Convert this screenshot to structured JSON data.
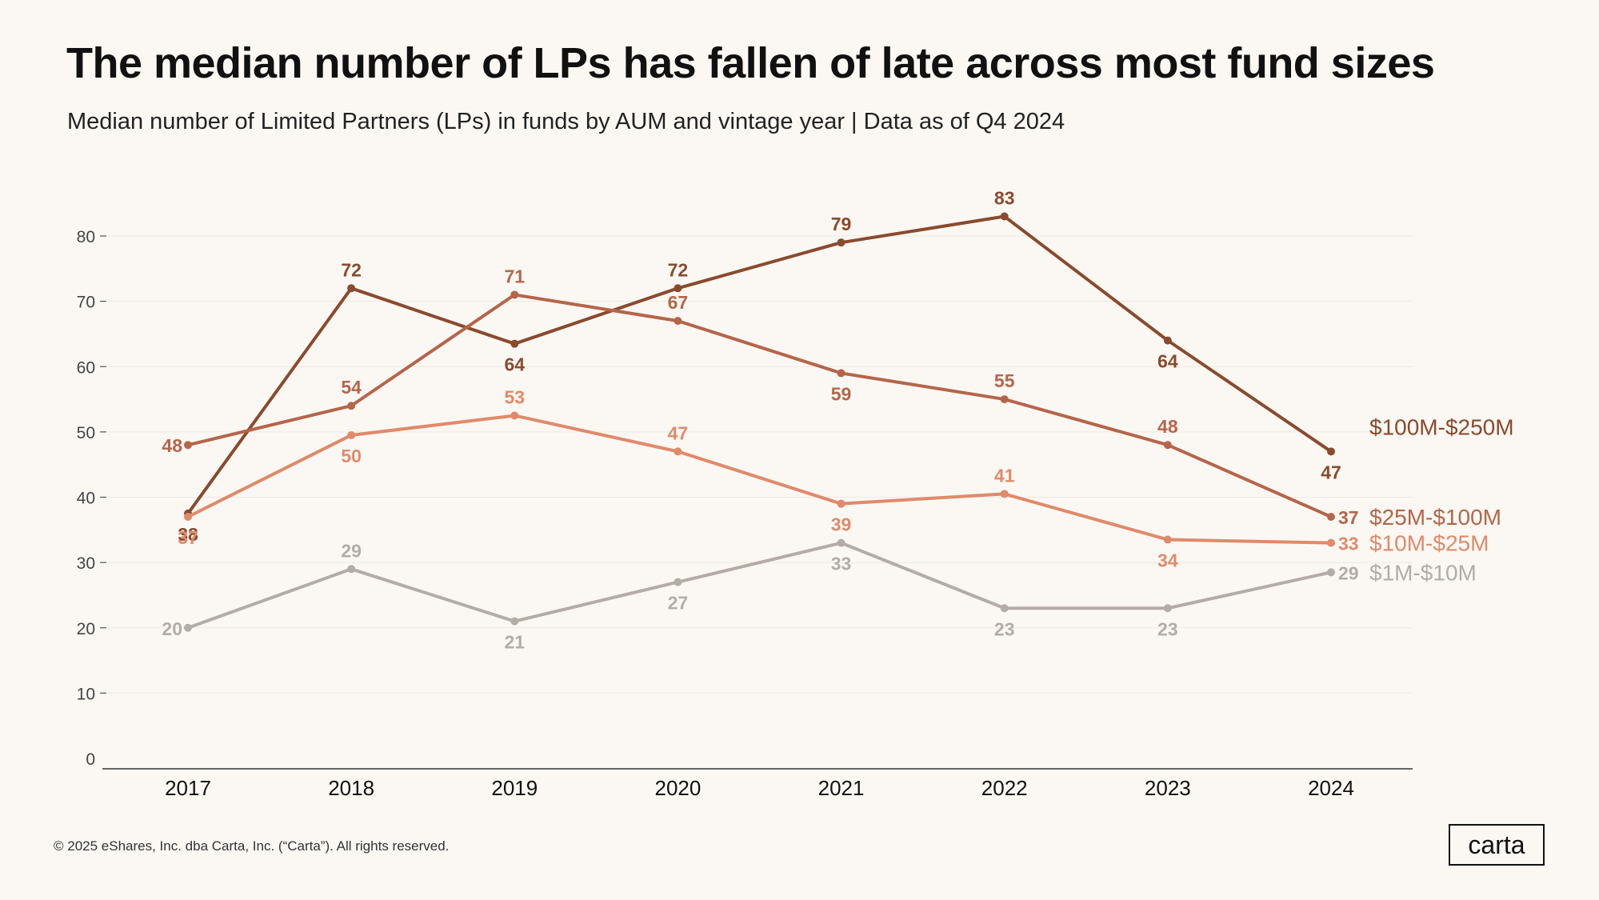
{
  "header": {
    "title": "The median number of LPs has fallen of late across most fund sizes",
    "subtitle": "Median number of Limited Partners (LPs) in funds by AUM and vintage year | Data as of Q4 2024"
  },
  "footer": {
    "copyright": "© 2025 eShares, Inc. dba Carta, Inc. (“Carta”). All rights reserved.",
    "logo_text": "carta"
  },
  "chart_data": {
    "type": "line",
    "title": "The median number of LPs has fallen of late across most fund sizes",
    "subtitle": "Median number of Limited Partners (LPs) in funds by AUM and vintage year | Data as of Q4 2024",
    "xlabel": "",
    "ylabel": "",
    "categories": [
      "2017",
      "2018",
      "2019",
      "2020",
      "2021",
      "2022",
      "2023",
      "2024"
    ],
    "ylim": [
      0,
      80
    ],
    "yticks": [
      0,
      10,
      20,
      30,
      40,
      50,
      60,
      70,
      80
    ],
    "grid": true,
    "legend": "right, inline at line ends",
    "series": [
      {
        "name": "$100M-$250M",
        "color": "#8a4a2e",
        "values": [
          37.5,
          72,
          63.5,
          72,
          79,
          83,
          64,
          47
        ],
        "labels": [
          "38",
          "72",
          "64",
          "72",
          "79",
          "83",
          "64",
          "47"
        ],
        "label_side": [
          "below",
          "above",
          "below",
          "above",
          "above",
          "above",
          "below",
          "below"
        ]
      },
      {
        "name": "$25M-$100M",
        "color": "#b5654a",
        "values": [
          48,
          54,
          71,
          67,
          59,
          55,
          48,
          37
        ],
        "labels": [
          "48",
          "54",
          "71",
          "67",
          "59",
          "55",
          "48",
          "37"
        ],
        "label_side": [
          "left",
          "above",
          "above",
          "above",
          "below",
          "above",
          "above",
          "right"
        ]
      },
      {
        "name": "$10M-$25M",
        "color": "#e08a6a",
        "values": [
          37,
          49.5,
          52.5,
          47,
          39,
          40.5,
          33.5,
          33
        ],
        "labels": [
          "37",
          "50",
          "53",
          "47",
          "39",
          "41",
          "34",
          "33"
        ],
        "label_side": [
          "below",
          "below",
          "above",
          "above",
          "below",
          "above",
          "below",
          "right"
        ]
      },
      {
        "name": "$1M-$10M",
        "color": "#b3aca7",
        "values": [
          20,
          29,
          21,
          27,
          33,
          23,
          23,
          28.5
        ],
        "labels": [
          "20",
          "29",
          "21",
          "27",
          "33",
          "23",
          "23",
          "29"
        ],
        "label_side": [
          "left",
          "above",
          "below",
          "below",
          "below",
          "below",
          "below",
          "right"
        ]
      }
    ]
  }
}
